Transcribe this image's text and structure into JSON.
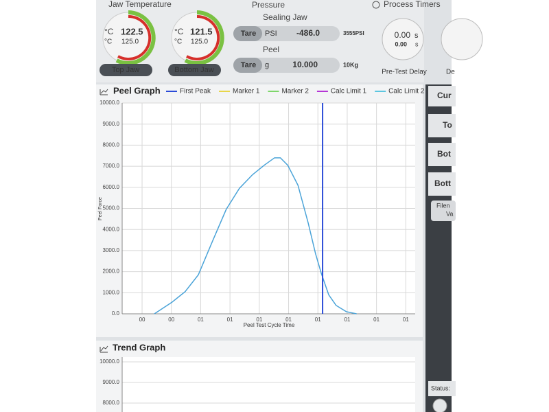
{
  "jaw_temperature": {
    "title": "Jaw Temperature",
    "gauges": [
      {
        "unit": "°C",
        "actual": "122.5",
        "set": "125.0",
        "label": "Top Jaw"
      },
      {
        "unit": "°C",
        "actual": "121.5",
        "set": "125.0",
        "label": "Bottom Jaw"
      }
    ]
  },
  "pressure": {
    "title": "Pressure",
    "sealing_jaw": {
      "label": "Sealing Jaw",
      "tare": "Tare",
      "unit": "PSI",
      "value": "-486.0",
      "range": "3555PSI"
    },
    "peel": {
      "label": "Peel",
      "tare": "Tare",
      "unit": "g",
      "value": "10.000",
      "range": "10Kg"
    }
  },
  "process_timers": {
    "title": "Process Timers",
    "timer": {
      "value": "0.00",
      "unit": "s",
      "sub_value": "0.00",
      "sub_unit": "s",
      "label": "Pre-Test Delay"
    },
    "next_label": "De"
  },
  "side_panel": {
    "buttons": [
      "Cur",
      "To",
      "Bot",
      "Bott"
    ],
    "file_label": [
      "Filen",
      "Va"
    ],
    "status": "Status:"
  },
  "chart_data": [
    {
      "type": "line",
      "title": "Peel Graph",
      "y_label": "Peel Force",
      "x_label": "Peel Test Cycle Time",
      "markers": [
        {
          "name": "First Peak",
          "color": "#2b4bd8",
          "x": 6.84
        },
        {
          "name": "Marker 1",
          "color": "#e8d64a"
        },
        {
          "name": "Marker 2",
          "color": "#7ed66a"
        },
        {
          "name": "Calc Limit 1",
          "color": "#b536d6"
        },
        {
          "name": "Calc Limit 2",
          "color": "#5cc6e0"
        }
      ],
      "x": [
        1.1,
        1.7,
        2.15,
        2.6,
        3.1,
        3.55,
        4.0,
        4.45,
        4.85,
        5.2,
        5.4,
        5.65,
        6.0,
        6.35,
        6.6,
        6.8,
        6.85,
        7.05,
        7.3,
        7.65,
        8.0
      ],
      "series": [
        {
          "color": "#4aa3d8",
          "values": [
            0,
            550,
            1050,
            1850,
            3500,
            4950,
            5950,
            6600,
            7050,
            7400,
            7400,
            7050,
            6100,
            4300,
            2850,
            1900,
            1700,
            900,
            400,
            100,
            0
          ]
        }
      ],
      "xlim": [
        0,
        10
      ],
      "xticks": [
        {
          "value": 0.68,
          "label": "00"
        },
        {
          "value": 1.68,
          "label": "00"
        },
        {
          "value": 2.68,
          "label": "01"
        },
        {
          "value": 3.68,
          "label": "01"
        },
        {
          "value": 4.68,
          "label": "01"
        },
        {
          "value": 5.68,
          "label": "01"
        },
        {
          "value": 6.68,
          "label": "01"
        },
        {
          "value": 7.68,
          "label": "01"
        },
        {
          "value": 8.68,
          "label": "01"
        },
        {
          "value": 9.68,
          "label": "01"
        }
      ],
      "ylim": [
        0,
        10000
      ],
      "yticks": [
        {
          "value": 0,
          "label": "0.0"
        },
        {
          "value": 1000,
          "label": "1000.0"
        },
        {
          "value": 2000,
          "label": "2000.0"
        },
        {
          "value": 3000,
          "label": "3000.0"
        },
        {
          "value": 4000,
          "label": "4000.0"
        },
        {
          "value": 5000,
          "label": "5000.0"
        },
        {
          "value": 6000,
          "label": "6000.0"
        },
        {
          "value": 7000,
          "label": "7000.0"
        },
        {
          "value": 8000,
          "label": "8000.0"
        },
        {
          "value": 9000,
          "label": "9000.0"
        },
        {
          "value": 10000,
          "label": "10000.0"
        }
      ],
      "grid": true
    },
    {
      "type": "line",
      "title": "Trend Graph",
      "ylim": [
        0,
        10000
      ],
      "yticks": [
        {
          "value": 8000,
          "label": "8000.0"
        },
        {
          "value": 9000,
          "label": "9000.0"
        },
        {
          "value": 10000,
          "label": "10000.0"
        }
      ],
      "grid": true
    }
  ]
}
